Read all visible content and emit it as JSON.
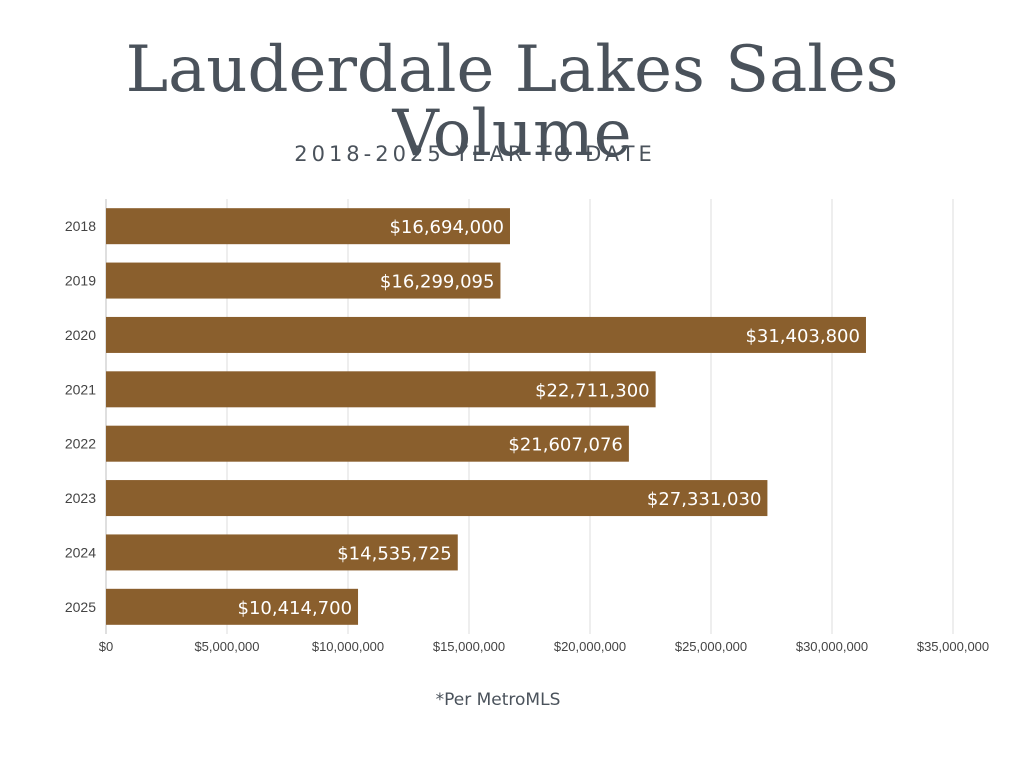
{
  "title": "Lauderdale Lakes Sales Volume",
  "subtitle": "2018-2025 YEAR TO DATE",
  "footnote": "*Per MetroMLS",
  "colors": {
    "bar": "#8a5f2d",
    "text": "#4a525b",
    "grid": "#dcdcdc"
  },
  "chart_data": {
    "type": "bar",
    "orientation": "horizontal",
    "categories": [
      "2018",
      "2019",
      "2020",
      "2021",
      "2022",
      "2023",
      "2024",
      "2025"
    ],
    "values": [
      16694000,
      16299095,
      31403800,
      22711300,
      21607076,
      27331030,
      14535725,
      10414700
    ],
    "data_labels": [
      "$16,694,000",
      "$16,299,095",
      "$31,403,800",
      "$22,711,300",
      "$21,607,076",
      "$27,331,030",
      "$14,535,725",
      "$10,414,700"
    ],
    "x_ticks": [
      0,
      5000000,
      10000000,
      15000000,
      20000000,
      25000000,
      30000000,
      35000000
    ],
    "x_tick_labels": [
      "$0",
      "$5,000,000",
      "$10,000,000",
      "$15,000,000",
      "$20,000,000",
      "$25,000,000",
      "$30,000,000",
      "$35,000,000"
    ],
    "xlim": [
      0,
      35000000
    ],
    "grid": true,
    "legend": "none"
  }
}
